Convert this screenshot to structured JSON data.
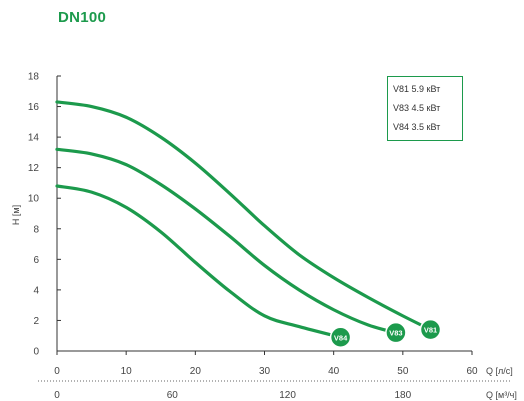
{
  "page": {
    "title": "DN100"
  },
  "colors": {
    "curve": "#1c9a4c",
    "axis": "#333333",
    "text": "#444444"
  },
  "chart_data": {
    "type": "line",
    "title": "",
    "ylabel": "H [м]",
    "xlabel": "Q [л/с]",
    "x2label": "Q [м³/ч]",
    "ylim": [
      0,
      18
    ],
    "xlim": [
      0,
      60
    ],
    "x2lim": [
      0,
      216
    ],
    "grid": false,
    "legend_position": "top-right",
    "yticks": [
      0,
      2,
      4,
      6,
      8,
      10,
      12,
      14,
      16,
      18
    ],
    "xticks": [
      0,
      10,
      20,
      30,
      40,
      50,
      60
    ],
    "x2ticks": [
      0,
      60,
      120,
      180
    ],
    "series": [
      {
        "name": "V81 5.9 кВт",
        "marker": "V81",
        "x": [
          0,
          5,
          10,
          15,
          20,
          25,
          30,
          35,
          40,
          45,
          50,
          54
        ],
        "y": [
          16.3,
          16.0,
          15.3,
          14.0,
          12.3,
          10.3,
          8.2,
          6.3,
          4.8,
          3.5,
          2.3,
          1.4
        ]
      },
      {
        "name": "V83 4.5 кВт",
        "marker": "V83",
        "x": [
          0,
          5,
          10,
          15,
          20,
          25,
          30,
          35,
          40,
          45,
          49
        ],
        "y": [
          13.2,
          12.9,
          12.2,
          10.9,
          9.3,
          7.5,
          5.6,
          4.0,
          2.7,
          1.7,
          1.2
        ]
      },
      {
        "name": "V84 3.5 кВт",
        "marker": "V84",
        "x": [
          0,
          5,
          10,
          15,
          20,
          25,
          30,
          35,
          41
        ],
        "y": [
          10.8,
          10.4,
          9.4,
          7.8,
          5.8,
          3.9,
          2.3,
          1.6,
          0.9
        ]
      }
    ]
  }
}
